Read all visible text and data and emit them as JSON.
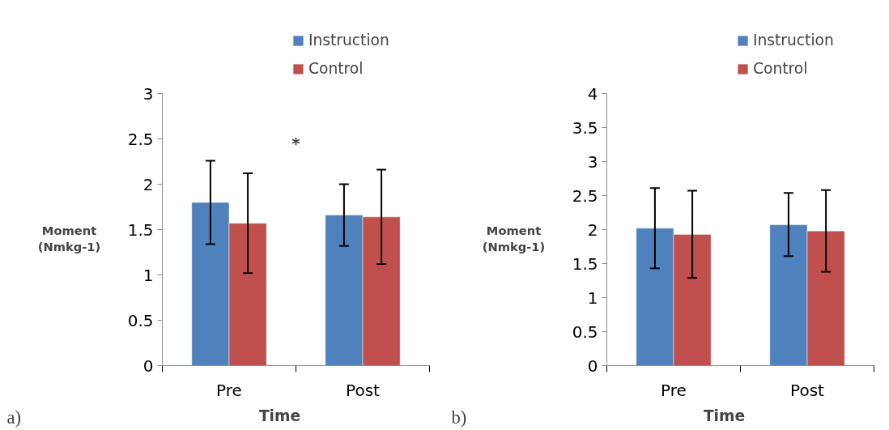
{
  "chart_data": [
    {
      "type": "bar",
      "xlabel": "Time",
      "ylabel": "Moment (Nmkg-1)",
      "categories": [
        "Pre",
        "Post"
      ],
      "series": [
        {
          "name": "Instruction",
          "color": "#4f81bd",
          "values": [
            1.8,
            1.66
          ],
          "errors": [
            [
              1.34,
              2.26
            ],
            [
              1.32,
              2.0
            ]
          ]
        },
        {
          "name": "Control",
          "color": "#c0504d",
          "values": [
            1.57,
            1.64
          ],
          "errors": [
            [
              1.02,
              2.12
            ],
            [
              1.12,
              2.16
            ]
          ]
        }
      ],
      "ylim": [
        0,
        3
      ],
      "yticks": [
        0,
        0.5,
        1,
        1.5,
        2,
        2.5,
        3
      ],
      "grid": false,
      "legend": "top right",
      "annotations": [
        "*",
        "a)"
      ]
    },
    {
      "type": "bar",
      "xlabel": "Time",
      "ylabel": "Moment (Nmkg-1)",
      "categories": [
        "Pre",
        "Post"
      ],
      "series": [
        {
          "name": "Instruction",
          "color": "#4f81bd",
          "values": [
            2.02,
            2.07
          ],
          "errors": [
            [
              1.43,
              2.61
            ],
            [
              1.61,
              2.54
            ]
          ]
        },
        {
          "name": "Control",
          "color": "#c0504d",
          "values": [
            1.93,
            1.98
          ],
          "errors": [
            [
              1.29,
              2.57
            ],
            [
              1.38,
              2.58
            ]
          ]
        }
      ],
      "ylim": [
        0,
        4
      ],
      "yticks": [
        0,
        0.5,
        1,
        1.5,
        2,
        2.5,
        3,
        3.5,
        4
      ],
      "grid": false,
      "legend": "top right",
      "annotations": [
        "b)"
      ]
    }
  ]
}
